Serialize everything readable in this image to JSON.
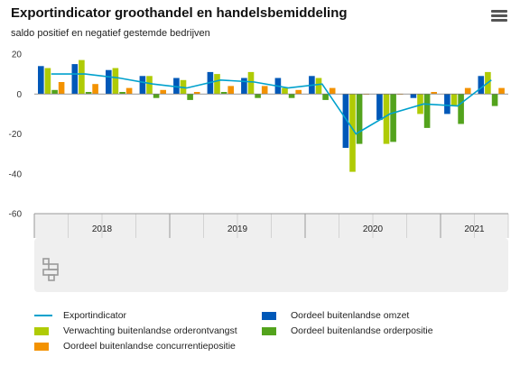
{
  "title": "Exportindicator groothandel en handelsbemiddeling",
  "subtitle": "saldo positief en negatief gestemde bedrijven",
  "menu_icon": "hamburger-menu-icon",
  "logo_icon": "cbs-logo-icon",
  "chart_data": {
    "type": "bar",
    "categories": [
      "2018 Q1",
      "2018 Q2",
      "2018 Q3",
      "2018 Q4",
      "2019 Q1",
      "2019 Q2",
      "2019 Q3",
      "2019 Q4",
      "2020 Q1",
      "2020 Q2",
      "2020 Q3",
      "2020 Q4",
      "2021 Q1",
      "2021 Q2"
    ],
    "year_labels": [
      {
        "label": "2018",
        "start": 0,
        "end": 4
      },
      {
        "label": "2019",
        "start": 4,
        "end": 8
      },
      {
        "label": "2020",
        "start": 8,
        "end": 12
      },
      {
        "label": "2021",
        "start": 12,
        "end": 14
      }
    ],
    "ylim": [
      -60,
      20
    ],
    "yticks": [
      20,
      0,
      -20,
      -40,
      -60
    ],
    "grid": false,
    "legend_position": "bottom",
    "series": [
      {
        "name": "Oordeel buitenlandse omzet",
        "type": "bar",
        "color": "#0058b8",
        "values": [
          14,
          15,
          12,
          9,
          8,
          11,
          8,
          8,
          9,
          -27,
          -13,
          -2,
          -10,
          9
        ]
      },
      {
        "name": "Verwachting buitenlandse orderontvangst",
        "type": "bar",
        "color": "#afcb05",
        "values": [
          13,
          17,
          13,
          9,
          7,
          10,
          11,
          3,
          8,
          -39,
          -25,
          -10,
          -6,
          11
        ]
      },
      {
        "name": "Oordeel buitenlandse orderpositie",
        "type": "bar",
        "color": "#53a31d",
        "values": [
          2,
          1,
          1,
          -2,
          -3,
          1,
          -2,
          -2,
          -3,
          -25,
          -24,
          -17,
          -15,
          -6
        ]
      },
      {
        "name": "Oordeel buitenlandse concurrentiepositie",
        "type": "bar",
        "color": "#f39200",
        "values": [
          6,
          5,
          3,
          2,
          1,
          4,
          4,
          2,
          3,
          0,
          0,
          1,
          3,
          3
        ]
      },
      {
        "name": "Exportindicator",
        "type": "line",
        "color": "#00a1cd",
        "values": [
          10,
          10,
          8,
          5,
          3,
          7,
          6,
          3,
          5,
          -20,
          -10,
          -5,
          -6,
          7
        ]
      }
    ]
  }
}
